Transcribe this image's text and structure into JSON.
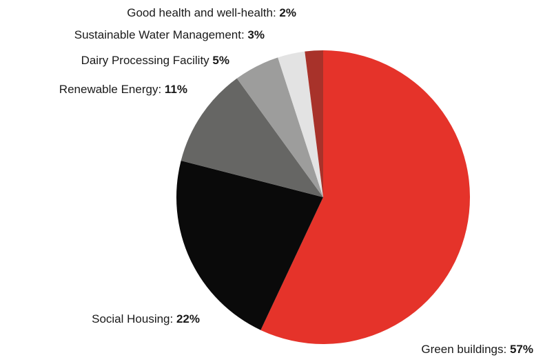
{
  "chart_data": {
    "type": "pie",
    "categories": [
      "Green buildings:",
      "Social Housing:",
      "Renewable Energy:",
      "Dairy Processing Facility",
      "Sustainable Water Management:",
      "Good health and well-health:"
    ],
    "values": [
      57,
      22,
      11,
      5,
      3,
      2
    ],
    "value_labels": [
      "57%",
      "22%",
      "11%",
      "5%",
      "3%",
      "2%"
    ],
    "colors": [
      "#e5332a",
      "#0a0a0a",
      "#666664",
      "#9d9d9c",
      "#e3e3e3",
      "#a8322a"
    ]
  }
}
